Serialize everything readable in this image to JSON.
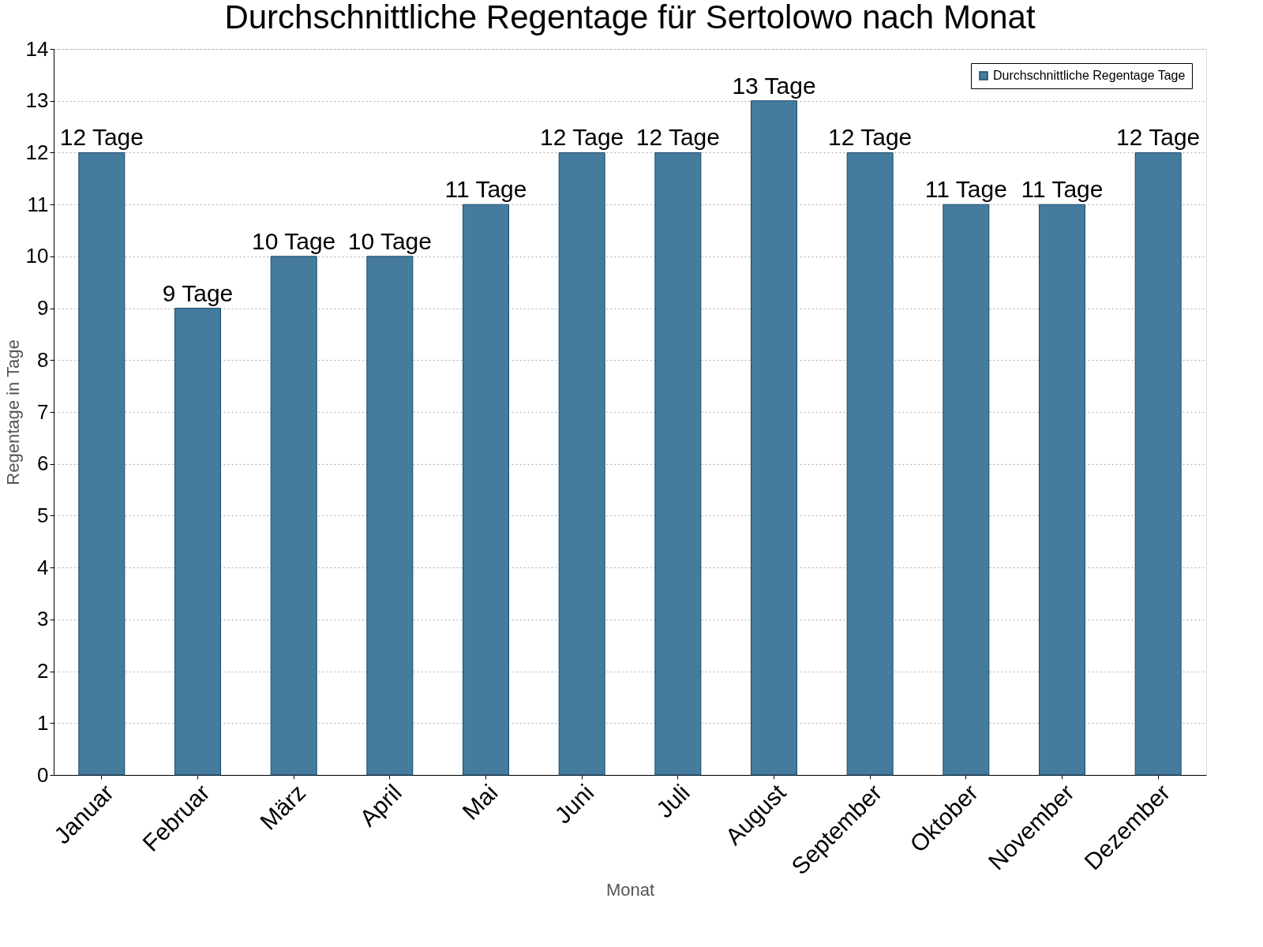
{
  "chart_data": {
    "type": "bar",
    "title": "Durchschnittliche Regentage für Sertolowo nach Monat",
    "xlabel": "Monat",
    "ylabel": "Regentage in Tage",
    "categories": [
      "Januar",
      "Februar",
      "März",
      "April",
      "Mai",
      "Juni",
      "Juli",
      "August",
      "September",
      "Oktober",
      "November",
      "Dezember"
    ],
    "series": [
      {
        "name": "Durchschnittliche Regentage Tage",
        "color": "#457b9d",
        "values": [
          12,
          9,
          10,
          10,
          11,
          12,
          12,
          13,
          12,
          11,
          11,
          12
        ],
        "value_labels": [
          "12 Tage",
          "9 Tage",
          "10 Tage",
          "10 Tage",
          "11 Tage",
          "12 Tage",
          "12 Tage",
          "13 Tage",
          "12 Tage",
          "11 Tage",
          "11 Tage",
          "12 Tage"
        ]
      }
    ],
    "ylim": [
      0,
      14
    ],
    "yticks": [
      0,
      1,
      2,
      3,
      4,
      5,
      6,
      7,
      8,
      9,
      10,
      11,
      12,
      13,
      14
    ],
    "grid": "y",
    "legend": "top right"
  }
}
